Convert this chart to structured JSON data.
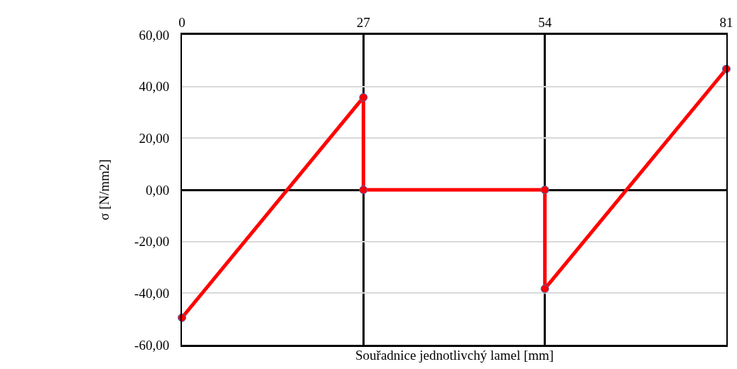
{
  "chart_data": {
    "type": "line",
    "xlabel": "Souřadnice jednotlivchý lamel [mm]",
    "ylabel": "σ [N/mm2]",
    "x": [
      0,
      27,
      27,
      54,
      54,
      81
    ],
    "series": [
      {
        "color": "#ff0000",
        "values": [
          -49.5,
          35.8,
          0,
          0,
          -38.3,
          46.8
        ]
      }
    ],
    "xlim": [
      0,
      81
    ],
    "xticks": [
      0,
      27,
      54,
      81
    ],
    "ylim": [
      -60,
      60
    ],
    "yticks": [
      {
        "value": -60,
        "label": "-60,00"
      },
      {
        "value": -40,
        "label": "-40,00"
      },
      {
        "value": -20,
        "label": "-20,00"
      },
      {
        "value": 0,
        "label": "0,00"
      },
      {
        "value": 20,
        "label": "20,00"
      },
      {
        "value": 40,
        "label": "40,00"
      },
      {
        "value": 60,
        "label": "60,00"
      }
    ],
    "grid": true,
    "legend": false,
    "marker": "circle",
    "line_style": "solid"
  }
}
